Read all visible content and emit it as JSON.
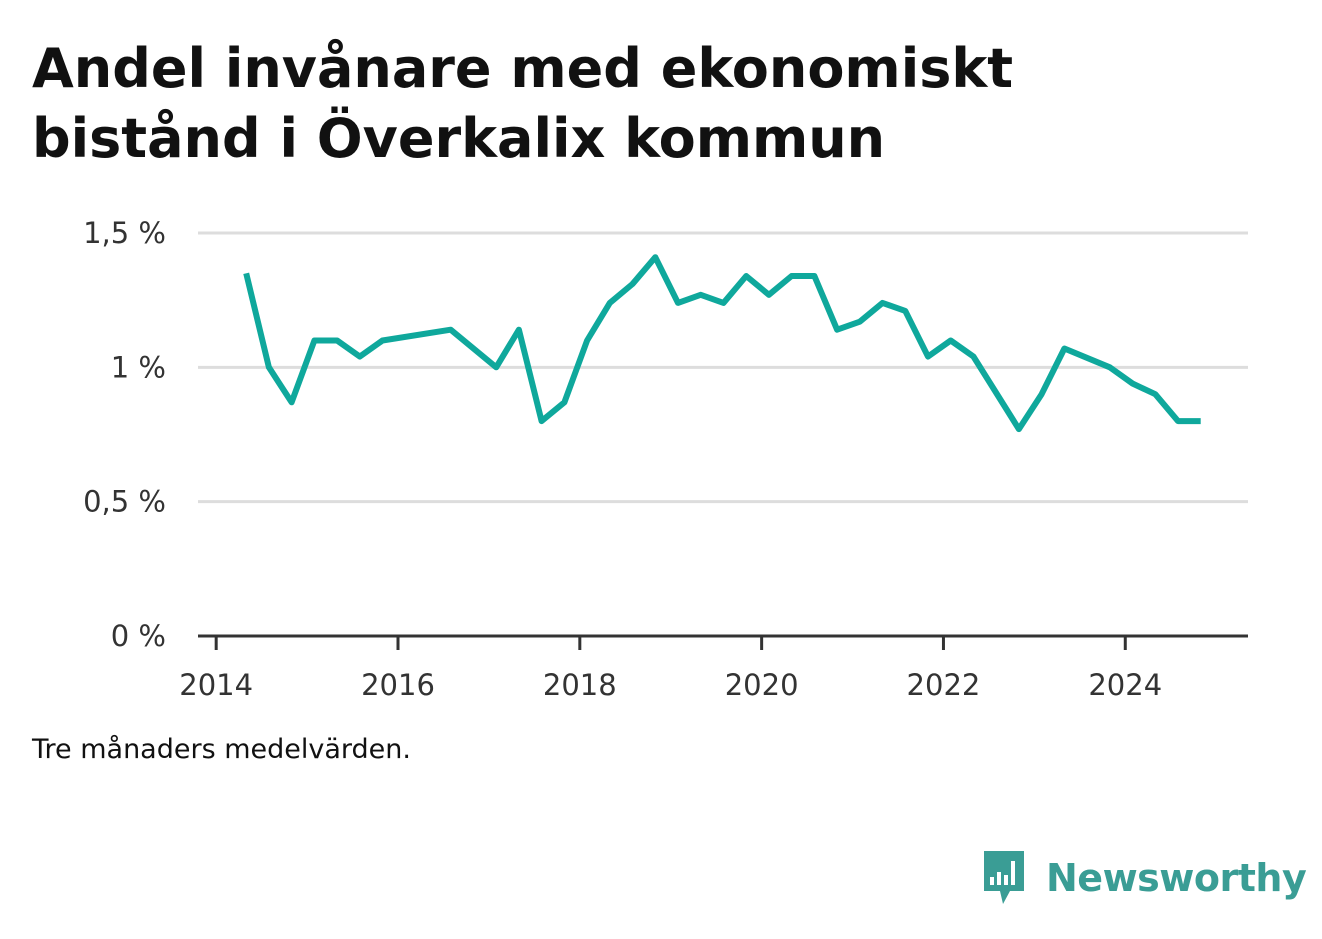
{
  "title": "Andel invånare med ekonomiskt bistånd i Överkalix kommun",
  "note": "Tre månaders medelvärden.",
  "brand": {
    "name": "Newsworthy",
    "icon": "newsworthy-logo-icon",
    "color": "#3a9d95"
  },
  "colors": {
    "line": "#0fa89c",
    "grid": "#dddddd",
    "axis": "#333333",
    "text": "#111111"
  },
  "chart_data": {
    "type": "line",
    "title": "Andel invånare med ekonomiskt bistånd i Överkalix kommun",
    "xlabel": "",
    "ylabel": "",
    "xlim": [
      2013.8,
      2025.35
    ],
    "ylim": [
      0,
      1.5
    ],
    "x_ticks": [
      {
        "value": 2014,
        "label": "2014"
      },
      {
        "value": 2016,
        "label": "2016"
      },
      {
        "value": 2018,
        "label": "2018"
      },
      {
        "value": 2020,
        "label": "2020"
      },
      {
        "value": 2022,
        "label": "2022"
      },
      {
        "value": 2024,
        "label": "2024"
      }
    ],
    "y_ticks": [
      {
        "value": 0,
        "label": "0 %"
      },
      {
        "value": 0.5,
        "label": "0,5 %"
      },
      {
        "value": 1,
        "label": "1 %"
      },
      {
        "value": 1.5,
        "label": "1,5 %"
      }
    ],
    "grid": true,
    "legend": "none",
    "series": [
      {
        "color": "#0fa89c",
        "points": [
          {
            "x": 2014.33,
            "y": 1.35
          },
          {
            "x": 2014.58,
            "y": 1.0
          },
          {
            "x": 2014.83,
            "y": 0.87
          },
          {
            "x": 2015.08,
            "y": 1.1
          },
          {
            "x": 2015.33,
            "y": 1.1
          },
          {
            "x": 2015.58,
            "y": 1.04
          },
          {
            "x": 2015.83,
            "y": 1.1
          },
          {
            "x": 2016.58,
            "y": 1.14
          },
          {
            "x": 2017.08,
            "y": 1.0
          },
          {
            "x": 2017.33,
            "y": 1.14
          },
          {
            "x": 2017.58,
            "y": 0.8
          },
          {
            "x": 2017.83,
            "y": 0.87
          },
          {
            "x": 2018.08,
            "y": 1.1
          },
          {
            "x": 2018.33,
            "y": 1.24
          },
          {
            "x": 2018.58,
            "y": 1.31
          },
          {
            "x": 2018.83,
            "y": 1.41
          },
          {
            "x": 2019.08,
            "y": 1.24
          },
          {
            "x": 2019.33,
            "y": 1.27
          },
          {
            "x": 2019.58,
            "y": 1.24
          },
          {
            "x": 2019.83,
            "y": 1.34
          },
          {
            "x": 2020.08,
            "y": 1.27
          },
          {
            "x": 2020.33,
            "y": 1.34
          },
          {
            "x": 2020.58,
            "y": 1.34
          },
          {
            "x": 2020.83,
            "y": 1.14
          },
          {
            "x": 2021.08,
            "y": 1.17
          },
          {
            "x": 2021.33,
            "y": 1.24
          },
          {
            "x": 2021.58,
            "y": 1.21
          },
          {
            "x": 2021.83,
            "y": 1.04
          },
          {
            "x": 2022.08,
            "y": 1.1
          },
          {
            "x": 2022.33,
            "y": 1.04
          },
          {
            "x": 2022.83,
            "y": 0.77
          },
          {
            "x": 2023.08,
            "y": 0.9
          },
          {
            "x": 2023.33,
            "y": 1.07
          },
          {
            "x": 2023.83,
            "y": 1.0
          },
          {
            "x": 2024.08,
            "y": 0.94
          },
          {
            "x": 2024.33,
            "y": 0.9
          },
          {
            "x": 2024.58,
            "y": 0.8
          },
          {
            "x": 2024.83,
            "y": 0.8
          }
        ]
      }
    ]
  }
}
